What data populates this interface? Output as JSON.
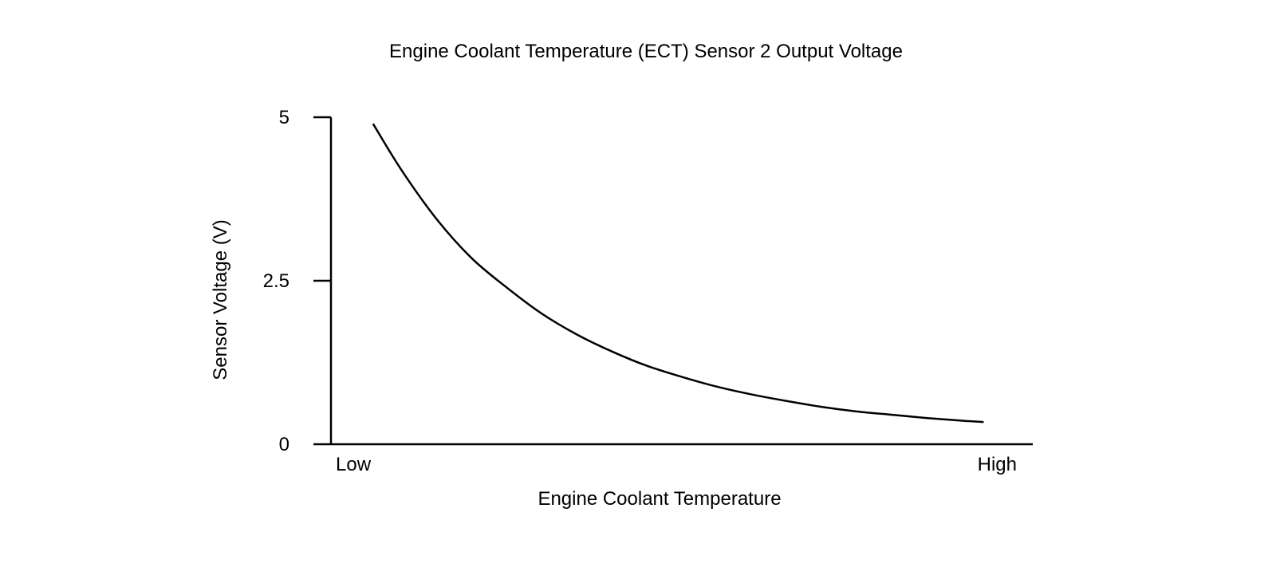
{
  "chart_data": {
    "type": "line",
    "title": "Engine Coolant Temperature (ECT) Sensor 2 Output Voltage",
    "xlabel": "Engine Coolant Temperature",
    "ylabel": "Sensor Voltage (V)",
    "x_tick_labels": [
      "Low",
      "High"
    ],
    "y_ticks": [
      {
        "value": 0,
        "label": "0"
      },
      {
        "value": 2.5,
        "label": "2.5"
      },
      {
        "value": 5,
        "label": "5"
      }
    ],
    "ylim": [
      0,
      5
    ],
    "xlim": [
      0,
      1
    ],
    "grid": false,
    "legend": "none",
    "line_color": "#000000",
    "series": [
      {
        "x": [
          0.06,
          0.1,
          0.15,
          0.2,
          0.25,
          0.3,
          0.35,
          0.4,
          0.45,
          0.5,
          0.55,
          0.6,
          0.65,
          0.7,
          0.75,
          0.8,
          0.85,
          0.9,
          0.93
        ],
        "values": [
          4.9,
          4.2,
          3.45,
          2.85,
          2.4,
          2.0,
          1.68,
          1.42,
          1.2,
          1.03,
          0.88,
          0.76,
          0.66,
          0.57,
          0.5,
          0.45,
          0.4,
          0.36,
          0.34
        ]
      }
    ]
  }
}
